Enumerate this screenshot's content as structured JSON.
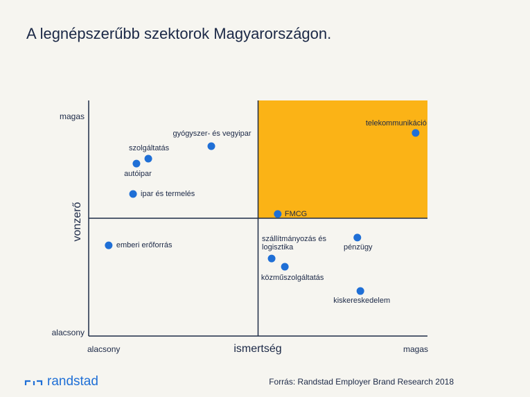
{
  "chart_data": {
    "type": "scatter",
    "title": "A legnépszerűbb szektorok Magyarországon.",
    "x_label": "ismertség",
    "y_label": "vonzerő",
    "xlim": [
      0,
      100
    ],
    "ylim": [
      0,
      100
    ],
    "xticks": [
      {
        "value": 0,
        "label": "alacsony"
      },
      {
        "value": 100,
        "label": "magas"
      }
    ],
    "yticks": [
      {
        "value": 0,
        "label": "alacsony"
      },
      {
        "value": 100,
        "label": "magas"
      }
    ],
    "labels": [
      "telekommunikáció",
      "gyógyszer- és vegyipar",
      "szolgáltatás",
      "autóipar",
      "ipar és termelés",
      "FMCG",
      "emberi erőforrás",
      "pénzügy",
      "szállítmányozás és logisztika",
      "közműszolgáltatás",
      "kiskereskedelem"
    ],
    "x": [
      96.5,
      36.2,
      17.6,
      14.1,
      13.1,
      55.8,
      5.9,
      79.3,
      54.0,
      57.9,
      80.2
    ],
    "series": [
      {
        "color": "#1f6fd6",
        "values": [
          86.2,
          80.6,
          75.3,
          73.2,
          60.3,
          51.8,
          38.5,
          41.8,
          32.9,
          29.4,
          19.1
        ]
      }
    ],
    "highlight_color": "#fbb316"
  },
  "footer": {
    "brand": "randstad",
    "source": "Forrás: Randstad Employer Brand Research 2018"
  }
}
